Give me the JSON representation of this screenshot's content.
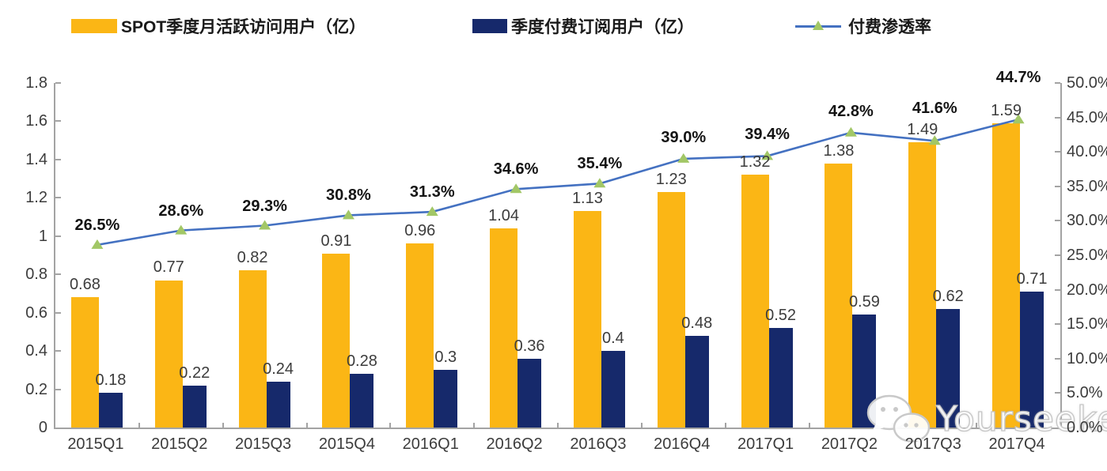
{
  "legend": {
    "items": [
      {
        "label": "SPOT季度月活跃访问用户（亿）",
        "swatch": "bar",
        "color": "#FBB615"
      },
      {
        "label": "季度付费订阅用户（亿）",
        "swatch": "bar",
        "color": "#16296B"
      },
      {
        "label": "付费渗透率",
        "swatch": "line-triangle-marker",
        "color": "#4471C1",
        "marker_color": "#A2C766"
      }
    ]
  },
  "chart_data": {
    "type": "bar+line",
    "categories": [
      "2015Q1",
      "2015Q2",
      "2015Q3",
      "2015Q4",
      "2016Q1",
      "2016Q2",
      "2016Q3",
      "2016Q4",
      "2017Q1",
      "2017Q2",
      "2017Q3",
      "2017Q4"
    ],
    "series": [
      {
        "name": "SPOT季度月活跃访问用户（亿）",
        "type": "bar",
        "axis": "left",
        "color": "#FBB615",
        "values": [
          0.68,
          0.77,
          0.82,
          0.91,
          0.96,
          1.04,
          1.13,
          1.23,
          1.32,
          1.38,
          1.49,
          1.59
        ],
        "labels": [
          "0.68",
          "0.77",
          "0.82",
          "0.91",
          "0.96",
          "1.04",
          "1.13",
          "1.23",
          "1.32",
          "1.38",
          "1.49",
          "1.59"
        ]
      },
      {
        "name": "季度付费订阅用户（亿）",
        "type": "bar",
        "axis": "left",
        "color": "#16296B",
        "values": [
          0.18,
          0.22,
          0.24,
          0.28,
          0.3,
          0.36,
          0.4,
          0.48,
          0.52,
          0.59,
          0.62,
          0.71
        ],
        "labels": [
          "0.18",
          "0.22",
          "0.24",
          "0.28",
          "0.3",
          "0.36",
          "0.4",
          "0.48",
          "0.52",
          "0.59",
          "0.62",
          "0.71"
        ]
      },
      {
        "name": "付费渗透率",
        "type": "line",
        "axis": "right",
        "color": "#4471C1",
        "marker": "triangle",
        "marker_color": "#A2C766",
        "values": [
          26.5,
          28.6,
          29.3,
          30.8,
          31.3,
          34.6,
          35.4,
          39.0,
          39.4,
          42.8,
          41.6,
          44.7
        ],
        "labels": [
          "26.5%",
          "28.6%",
          "29.3%",
          "30.8%",
          "31.3%",
          "34.6%",
          "35.4%",
          "39.0%",
          "39.4%",
          "42.8%",
          "41.6%",
          "44.7%"
        ]
      }
    ],
    "left_axis": {
      "min": 0,
      "max": 1.8,
      "step": 0.2,
      "tick_labels": [
        "0",
        "0.2",
        "0.4",
        "0.6",
        "0.8",
        "1",
        "1.2",
        "1.4",
        "1.6",
        "1.8"
      ]
    },
    "right_axis": {
      "min": 0,
      "max": 50,
      "step": 5,
      "tick_labels": [
        "0.0%",
        "5.0%",
        "10.0%",
        "15.0%",
        "20.0%",
        "25.0%",
        "30.0%",
        "35.0%",
        "40.0%",
        "45.0%",
        "50.0%"
      ]
    },
    "grid": false,
    "legend_position": "top",
    "pct_label_dist": [
      36,
      36,
      36,
      36,
      36,
      36,
      36,
      38,
      38,
      38,
      52,
      64
    ]
  },
  "watermark": {
    "label": "Yourseeker",
    "icon": "wechat-icon"
  }
}
